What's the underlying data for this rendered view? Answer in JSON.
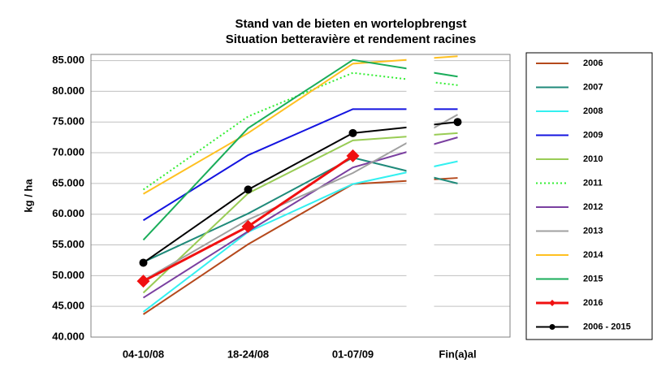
{
  "chart_data": {
    "type": "line",
    "title": "Stand van de bieten en wortelopbrengst",
    "subtitle": "Situation betteravière et rendement racines",
    "y_label": "kg / ha",
    "categories": [
      "04-10/08",
      "18-24/08",
      "01-07/09",
      "Fin(a)al"
    ],
    "ylim": [
      40000,
      86000
    ],
    "yticks": [
      {
        "value": 40000,
        "label": "40.000"
      },
      {
        "value": 45000,
        "label": "45.000"
      },
      {
        "value": 50000,
        "label": "50.000"
      },
      {
        "value": 55000,
        "label": "55.000"
      },
      {
        "value": 60000,
        "label": "60.000"
      },
      {
        "value": 65000,
        "label": "65.000"
      },
      {
        "value": 70000,
        "label": "70.000"
      },
      {
        "value": 75000,
        "label": "75.000"
      },
      {
        "value": 80000,
        "label": "80.000"
      },
      {
        "value": 85000,
        "label": "85.000"
      }
    ],
    "grid": true,
    "series": [
      {
        "name": "2006",
        "color": "#b5491c",
        "values": [
          43700,
          55100,
          64900,
          65900
        ]
      },
      {
        "name": "2007",
        "color": "#1f8a7a",
        "values": [
          52200,
          60100,
          69200,
          65000
        ]
      },
      {
        "name": "2008",
        "color": "#33f0f0",
        "values": [
          44100,
          57100,
          64900,
          68600
        ]
      },
      {
        "name": "2009",
        "color": "#1414e0",
        "values": [
          59000,
          69600,
          77100,
          77100
        ]
      },
      {
        "name": "2010",
        "color": "#99cc55",
        "values": [
          47200,
          63400,
          72000,
          73200
        ]
      },
      {
        "name": "2011",
        "color": "#33ee33",
        "dash": "dotted",
        "values": [
          64000,
          75900,
          83000,
          81000
        ]
      },
      {
        "name": "2012",
        "color": "#7a3fa0",
        "values": [
          46400,
          57200,
          67600,
          72500
        ]
      },
      {
        "name": "2013",
        "color": "#a0a0a0",
        "values": [
          49200,
          59100,
          66700,
          76200
        ]
      },
      {
        "name": "2014",
        "color": "#ffc020",
        "values": [
          63300,
          73200,
          84500,
          85700
        ]
      },
      {
        "name": "2015",
        "color": "#1aad5a",
        "values": [
          55800,
          74000,
          85100,
          82400
        ]
      },
      {
        "name": "2016",
        "color": "#f01010",
        "marker": "diamond",
        "width": 3,
        "values": [
          49100,
          58000,
          69500,
          null
        ]
      },
      {
        "name": "2006 - 2015",
        "color": "#000000",
        "marker": "circle",
        "values": [
          52100,
          64000,
          73200,
          75000
        ]
      }
    ]
  }
}
